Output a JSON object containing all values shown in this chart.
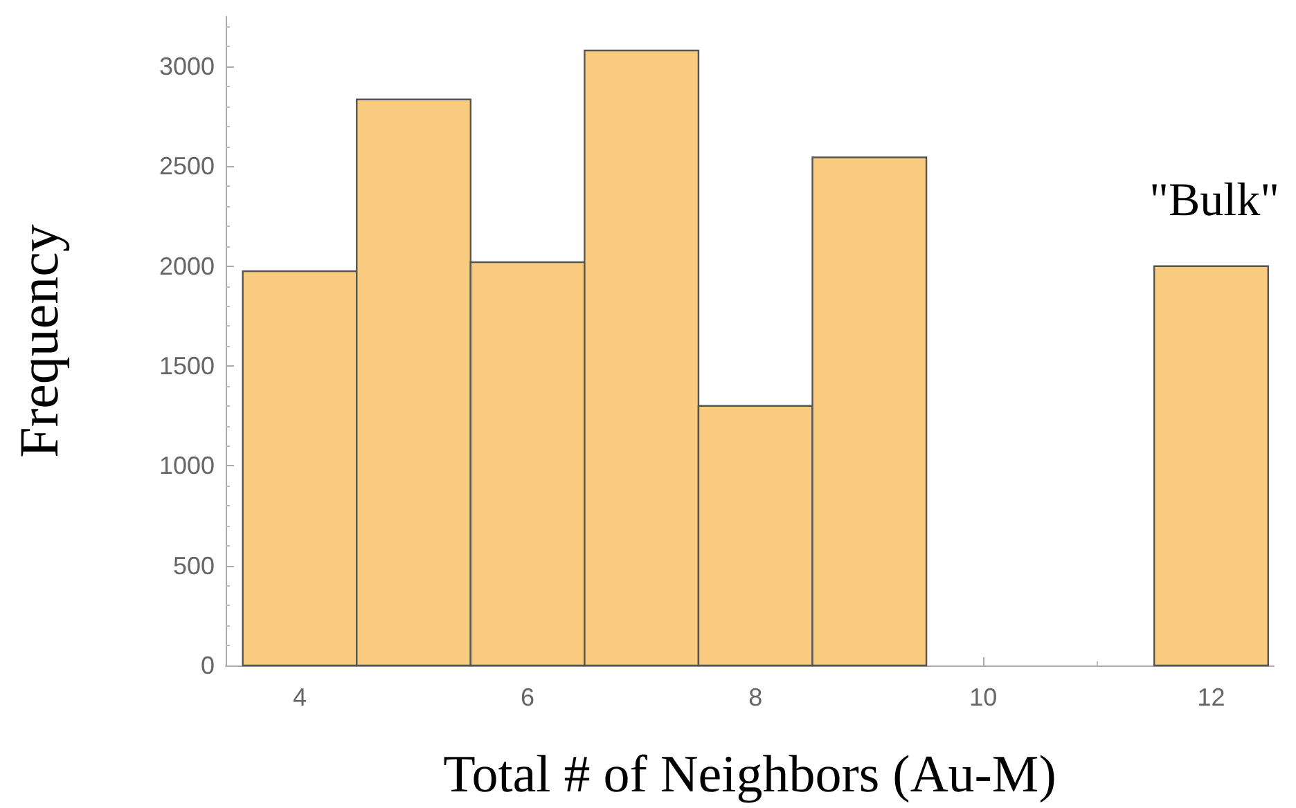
{
  "chart_data": {
    "type": "histogram",
    "xlabel": "Total # of Neighbors (Au-M)",
    "ylabel": "Frequency",
    "bins": [
      3.5,
      4.5,
      5.5,
      6.5,
      7.5,
      8.5,
      9.5,
      10.5,
      11.5,
      12.5
    ],
    "values": [
      1975,
      2835,
      2020,
      3080,
      1300,
      2545,
      0,
      0,
      2000
    ],
    "color": "#f8cb7f",
    "xlim": [
      3.35,
      12.55
    ],
    "xticks": [
      4,
      6,
      8,
      10,
      12
    ],
    "ylim": [
      0,
      3250
    ],
    "yticks": [
      0,
      500,
      1000,
      1500,
      2000,
      2500,
      3000
    ],
    "grid": false,
    "annotations": [
      "\"Bulk\""
    ]
  }
}
